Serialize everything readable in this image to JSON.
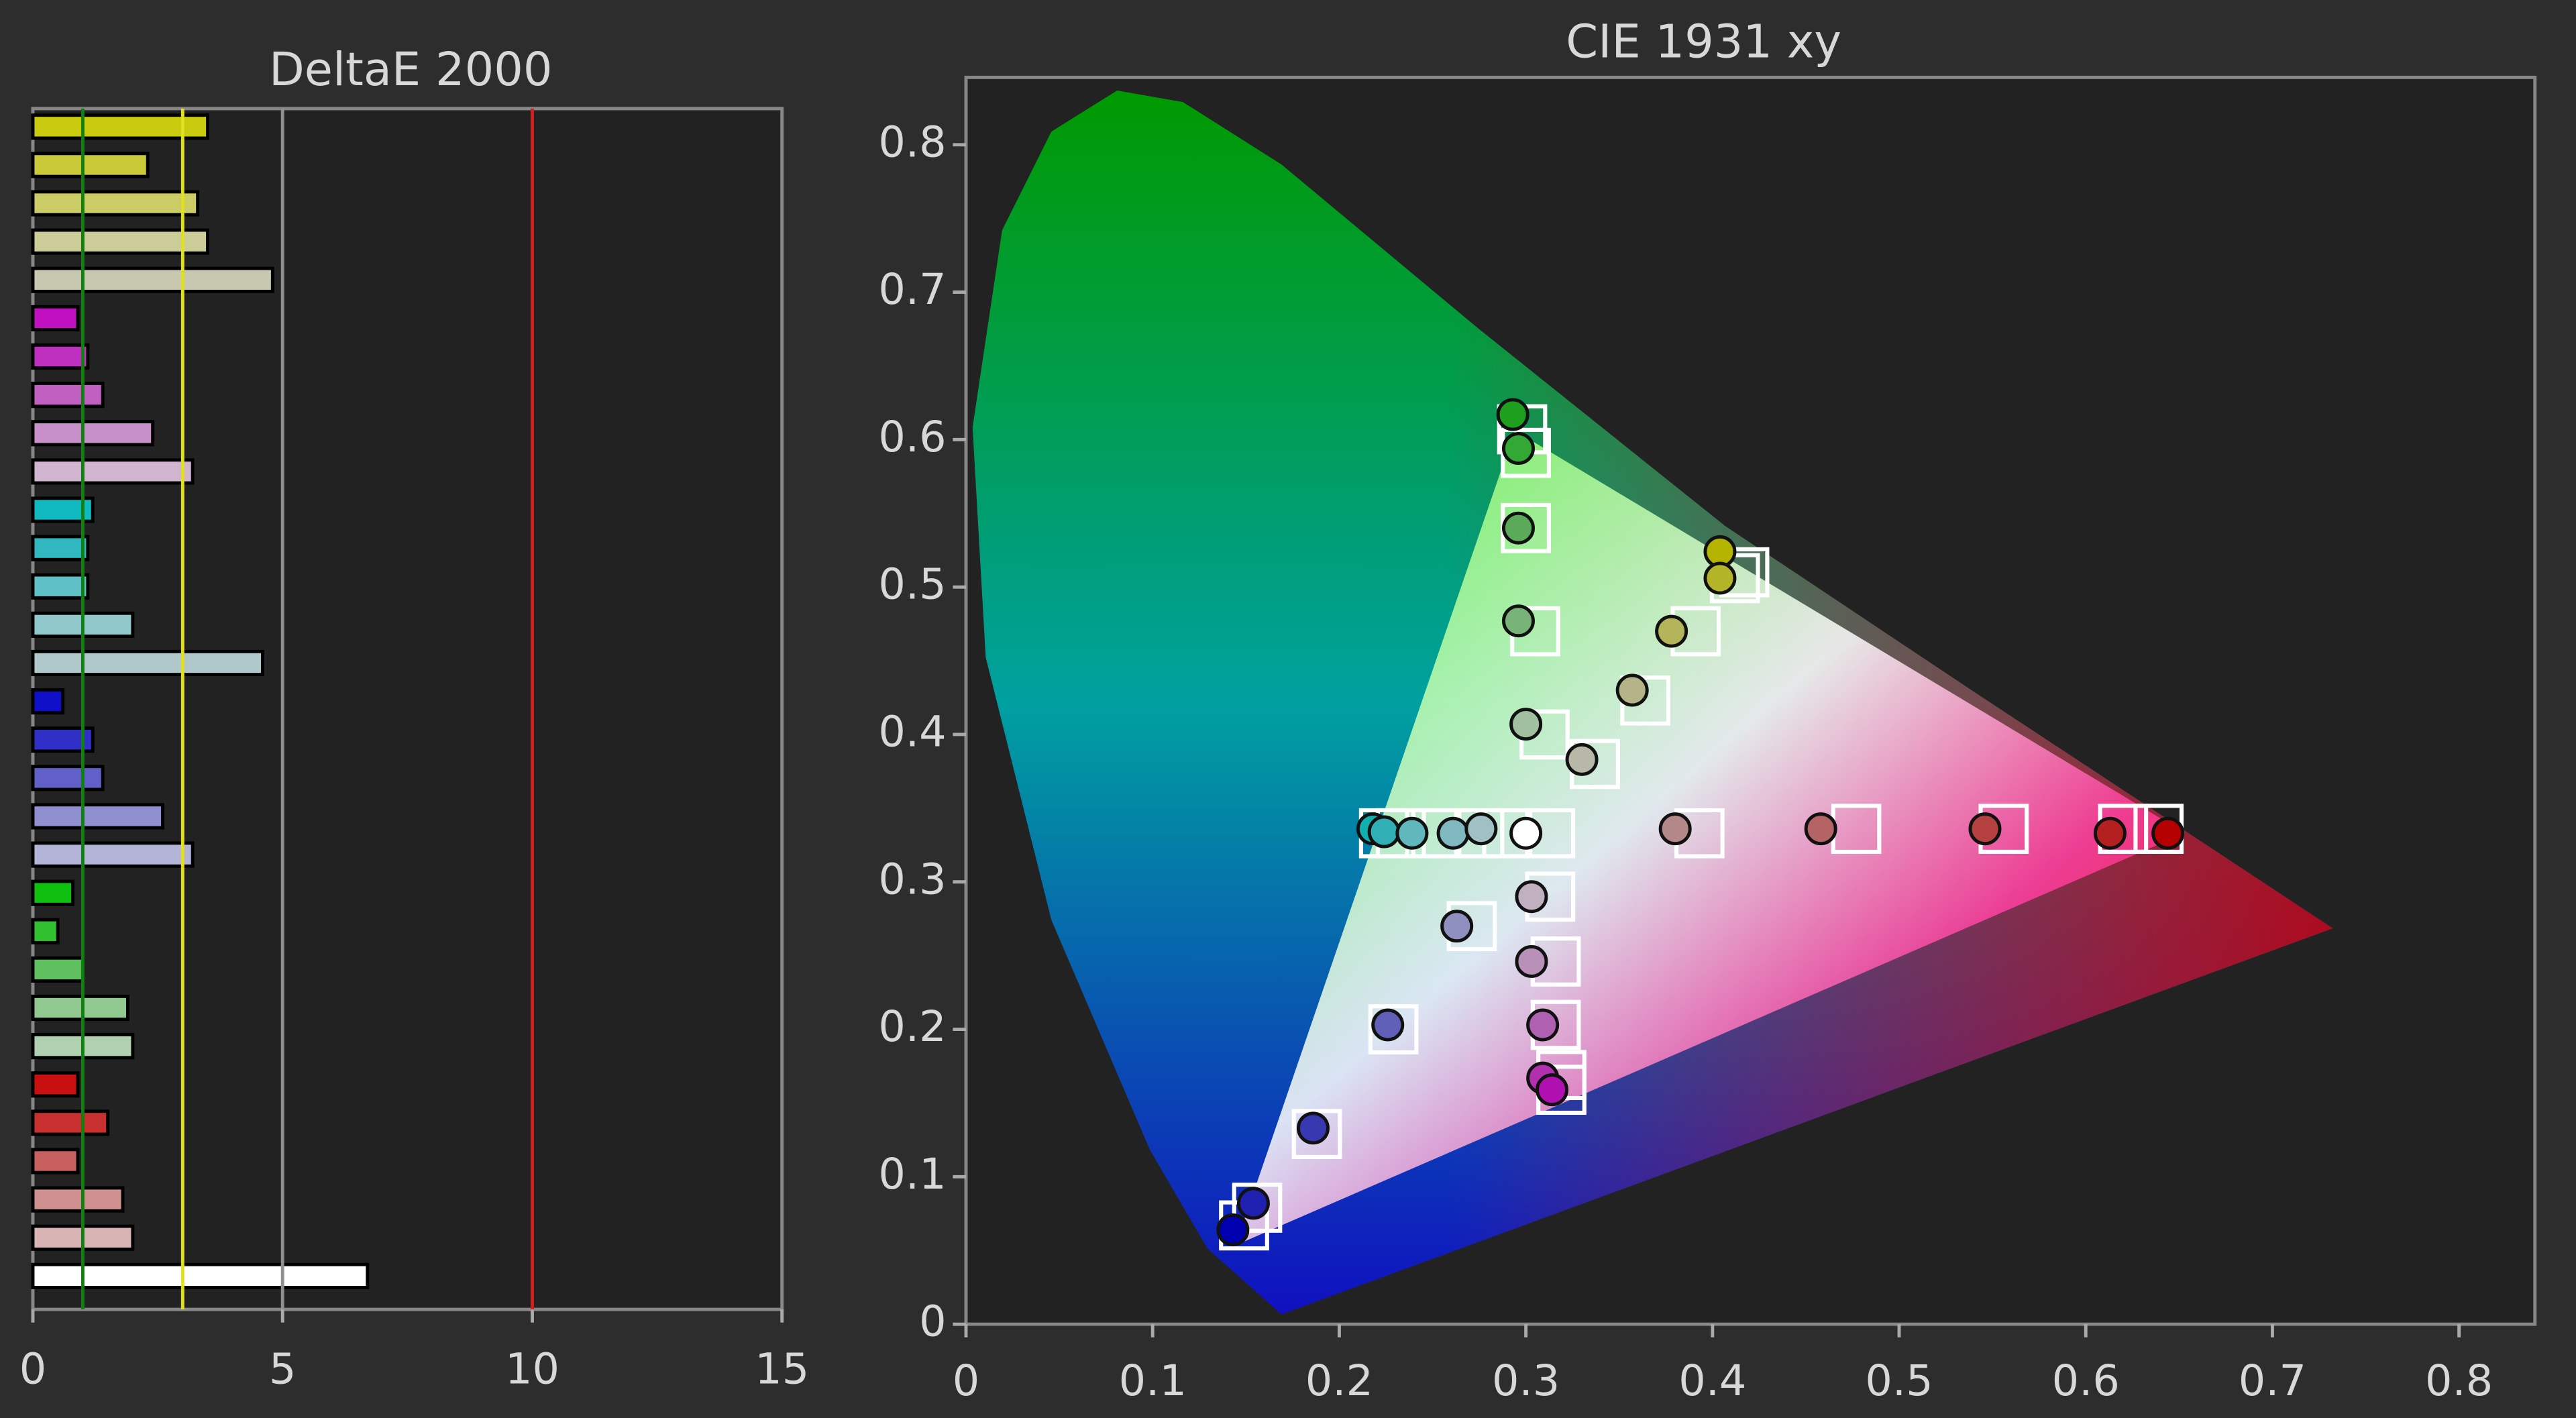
{
  "chart_data": [
    {
      "type": "bar",
      "title": "DeltaE 2000",
      "orientation": "horizontal",
      "values": [
        3.5,
        2.3,
        3.3,
        3.5,
        4.8,
        0.9,
        1.1,
        1.4,
        2.4,
        3.2,
        1.2,
        1.1,
        1.1,
        2.0,
        4.6,
        0.6,
        1.2,
        1.4,
        2.6,
        3.2,
        0.8,
        0.5,
        1.0,
        1.9,
        2.0,
        0.9,
        1.5,
        0.9,
        1.8,
        2.0,
        6.7
      ],
      "colors": [
        "#c9c90e",
        "#c9c93a",
        "#cccc66",
        "#cccc99",
        "#c8c8b0",
        "#c010c0",
        "#c030c0",
        "#c060c0",
        "#c890c8",
        "#d0b4d0",
        "#10b8c0",
        "#30b8c0",
        "#60c0c8",
        "#90c8cc",
        "#b0c8cc",
        "#1010c8",
        "#3030c8",
        "#6060c8",
        "#9090d0",
        "#b4b4d8",
        "#10c010",
        "#30c030",
        "#60c060",
        "#90c890",
        "#b0d0b0",
        "#c81010",
        "#c83030",
        "#c86060",
        "#d09090",
        "#d8b4b4",
        "#ffffff"
      ],
      "xlim": [
        0,
        15
      ],
      "xticks": [
        0,
        5,
        10,
        15
      ],
      "reference_lines": [
        {
          "value": 1,
          "color": "#108010"
        },
        {
          "value": 3,
          "color": "#e0e020"
        },
        {
          "value": 5,
          "color": "#909090"
        },
        {
          "value": 10,
          "color": "#d02020"
        }
      ]
    },
    {
      "type": "scatter",
      "title": "CIE 1931 xy",
      "measured": {
        "x": [
          0.293,
          0.296,
          0.296,
          0.296,
          0.3,
          0.404,
          0.404,
          0.378,
          0.357,
          0.33,
          0.218,
          0.224,
          0.239,
          0.261,
          0.276,
          0.3,
          0.38,
          0.458,
          0.546,
          0.613,
          0.644,
          0.303,
          0.303,
          0.309,
          0.309,
          0.314,
          0.263,
          0.226,
          0.186,
          0.154,
          0.143
        ],
        "y": [
          0.617,
          0.594,
          0.54,
          0.477,
          0.407,
          0.524,
          0.506,
          0.47,
          0.43,
          0.383,
          0.336,
          0.334,
          0.333,
          0.333,
          0.336,
          0.333,
          0.336,
          0.336,
          0.336,
          0.333,
          0.333,
          0.29,
          0.246,
          0.203,
          0.167,
          0.159,
          0.27,
          0.203,
          0.133,
          0.082,
          0.064
        ],
        "colors": [
          "#1ea01e",
          "#34a834",
          "#5aaa5a",
          "#78b478",
          "#a0c0a0",
          "#b4b400",
          "#b4b428",
          "#b4b45a",
          "#b4b488",
          "#b8b8a8",
          "#10b0b0",
          "#30b0b4",
          "#60b8bc",
          "#80b8c0",
          "#a0c0c4",
          "#ffffff",
          "#b48888",
          "#b46464",
          "#b44040",
          "#b42020",
          "#b40000",
          "#c0b0c0",
          "#b890b8",
          "#b060b0",
          "#b030b0",
          "#b010b0",
          "#9090c0",
          "#6060b8",
          "#3838b0",
          "#2020b0",
          "#0000b0"
        ]
      },
      "targets": {
        "x": [
          0.298,
          0.3,
          0.3,
          0.305,
          0.31,
          0.417,
          0.412,
          0.391,
          0.364,
          0.337,
          0.224,
          0.233,
          0.252,
          0.275,
          0.29,
          0.313,
          0.393,
          0.477,
          0.556,
          0.62,
          0.639,
          0.313,
          0.316,
          0.316,
          0.319,
          0.319,
          0.271,
          0.229,
          0.188,
          0.156,
          0.149
        ],
        "y": [
          0.607,
          0.591,
          0.54,
          0.47,
          0.4,
          0.51,
          0.506,
          0.47,
          0.423,
          0.38,
          0.333,
          0.333,
          0.333,
          0.333,
          0.333,
          0.333,
          0.333,
          0.336,
          0.336,
          0.336,
          0.336,
          0.29,
          0.246,
          0.203,
          0.169,
          0.159,
          0.27,
          0.2,
          0.129,
          0.079,
          0.067
        ],
        "color": "#ffffff"
      },
      "xlim": [
        0,
        0.84
      ],
      "ylim": [
        0,
        0.846
      ],
      "xticks": [
        0,
        0.1,
        0.2,
        0.3,
        0.4,
        0.5,
        0.6,
        0.7,
        0.8
      ],
      "yticks": [
        0,
        0.1,
        0.2,
        0.3,
        0.4,
        0.5,
        0.6,
        0.7,
        0.8
      ]
    }
  ]
}
